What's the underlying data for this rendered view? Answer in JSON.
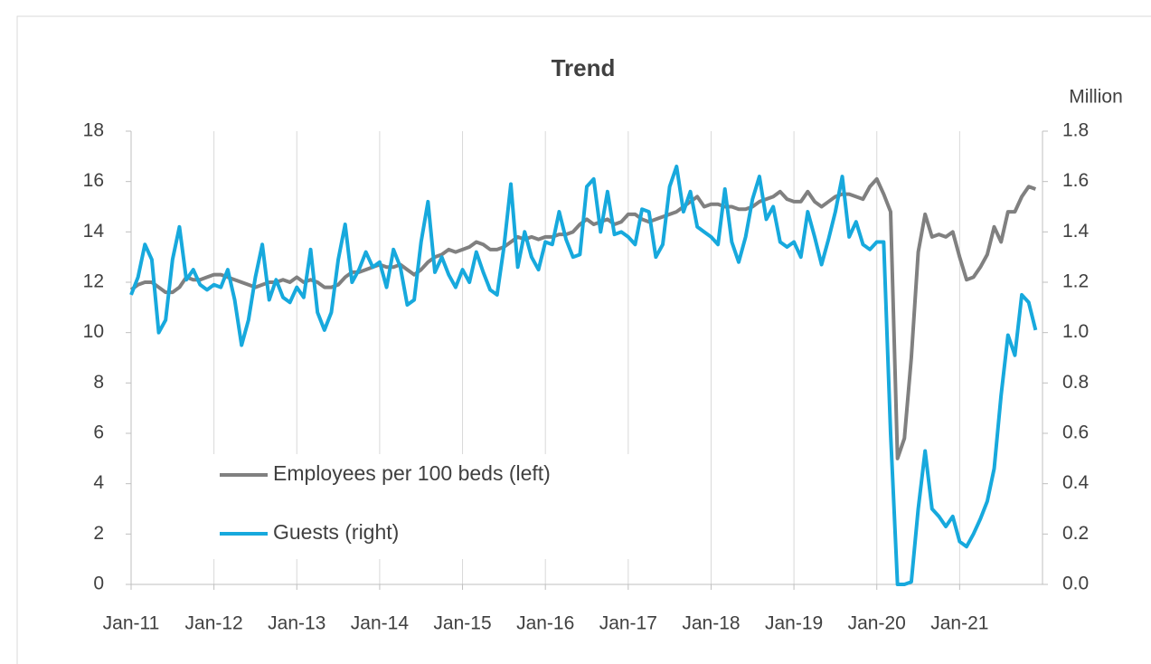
{
  "chart_data": {
    "type": "line",
    "title": "Trend",
    "y2_label": "Million",
    "categories": [
      "Jan-11",
      null,
      null,
      null,
      null,
      null,
      null,
      null,
      null,
      null,
      null,
      null,
      "Jan-12",
      null,
      null,
      null,
      null,
      null,
      null,
      null,
      null,
      null,
      null,
      null,
      "Jan-13",
      null,
      null,
      null,
      null,
      null,
      null,
      null,
      null,
      null,
      null,
      null,
      "Jan-14",
      null,
      null,
      null,
      null,
      null,
      null,
      null,
      null,
      null,
      null,
      null,
      "Jan-15",
      null,
      null,
      null,
      null,
      null,
      null,
      null,
      null,
      null,
      null,
      null,
      "Jan-16",
      null,
      null,
      null,
      null,
      null,
      null,
      null,
      null,
      null,
      null,
      null,
      "Jan-17",
      null,
      null,
      null,
      null,
      null,
      null,
      null,
      null,
      null,
      null,
      null,
      "Jan-18",
      null,
      null,
      null,
      null,
      null,
      null,
      null,
      null,
      null,
      null,
      null,
      "Jan-19",
      null,
      null,
      null,
      null,
      null,
      null,
      null,
      null,
      null,
      null,
      null,
      "Jan-20",
      null,
      null,
      null,
      null,
      null,
      null,
      null,
      null,
      null,
      null,
      null,
      "Jan-21",
      null,
      null,
      null,
      null,
      null,
      null,
      null,
      null,
      null,
      null,
      null
    ],
    "series": [
      {
        "name": "Employees per 100 beds (left)",
        "color": "#808080",
        "axis": "y",
        "values": [
          11.7,
          11.9,
          12.0,
          12.0,
          11.8,
          11.6,
          11.6,
          11.8,
          12.2,
          12.1,
          12.1,
          12.2,
          12.3,
          12.3,
          12.2,
          12.1,
          12.0,
          11.9,
          11.8,
          11.9,
          12.0,
          12.0,
          12.1,
          12.0,
          12.2,
          12.0,
          12.1,
          12.0,
          11.8,
          11.8,
          11.9,
          12.2,
          12.4,
          12.4,
          12.5,
          12.6,
          12.7,
          12.6,
          12.6,
          12.7,
          12.5,
          12.3,
          12.5,
          12.8,
          13.0,
          13.1,
          13.3,
          13.2,
          13.3,
          13.4,
          13.6,
          13.5,
          13.3,
          13.3,
          13.4,
          13.6,
          13.8,
          13.7,
          13.8,
          13.7,
          13.8,
          13.8,
          13.9,
          13.9,
          14.0,
          14.3,
          14.5,
          14.3,
          14.4,
          14.5,
          14.3,
          14.4,
          14.7,
          14.7,
          14.5,
          14.4,
          14.5,
          14.6,
          14.7,
          14.8,
          15.0,
          15.2,
          15.4,
          15.0,
          15.1,
          15.1,
          15.0,
          15.0,
          14.9,
          14.9,
          15.0,
          15.2,
          15.3,
          15.4,
          15.6,
          15.3,
          15.2,
          15.2,
          15.6,
          15.2,
          15.0,
          15.2,
          15.4,
          15.5,
          15.5,
          15.4,
          15.3,
          15.8,
          16.1,
          15.5,
          14.8,
          5.0,
          5.8,
          9.0,
          13.2,
          14.7,
          13.8,
          13.9,
          13.8,
          14.0,
          13.0,
          12.1,
          12.2,
          12.6,
          13.1,
          14.2,
          13.6,
          14.8,
          14.8,
          15.4,
          15.8,
          15.7
        ]
      },
      {
        "name": "Guests (right)",
        "color": "#17a9dd",
        "axis": "y2",
        "values": [
          1.15,
          1.22,
          1.35,
          1.29,
          1.0,
          1.05,
          1.29,
          1.42,
          1.21,
          1.25,
          1.19,
          1.17,
          1.19,
          1.18,
          1.25,
          1.13,
          0.95,
          1.05,
          1.22,
          1.35,
          1.13,
          1.21,
          1.14,
          1.12,
          1.18,
          1.14,
          1.33,
          1.08,
          1.01,
          1.08,
          1.29,
          1.43,
          1.2,
          1.25,
          1.32,
          1.26,
          1.28,
          1.18,
          1.33,
          1.26,
          1.11,
          1.13,
          1.36,
          1.52,
          1.24,
          1.3,
          1.23,
          1.18,
          1.25,
          1.2,
          1.32,
          1.24,
          1.17,
          1.15,
          1.34,
          1.59,
          1.26,
          1.4,
          1.3,
          1.25,
          1.36,
          1.35,
          1.48,
          1.37,
          1.3,
          1.31,
          1.58,
          1.61,
          1.4,
          1.56,
          1.39,
          1.4,
          1.38,
          1.35,
          1.49,
          1.48,
          1.3,
          1.35,
          1.58,
          1.66,
          1.48,
          1.56,
          1.42,
          1.4,
          1.38,
          1.35,
          1.57,
          1.36,
          1.28,
          1.38,
          1.53,
          1.62,
          1.45,
          1.5,
          1.36,
          1.34,
          1.36,
          1.3,
          1.48,
          1.38,
          1.27,
          1.37,
          1.48,
          1.62,
          1.38,
          1.44,
          1.35,
          1.33,
          1.36,
          1.36,
          0.6,
          0.0,
          0.0,
          0.01,
          0.3,
          0.53,
          0.3,
          0.27,
          0.23,
          0.27,
          0.17,
          0.15,
          0.2,
          0.26,
          0.33,
          0.46,
          0.75,
          0.99,
          0.91,
          1.15,
          1.12,
          1.01
        ]
      }
    ],
    "ylim": [
      0,
      18
    ],
    "yticks": [
      0,
      2,
      4,
      6,
      8,
      10,
      12,
      14,
      16,
      18
    ],
    "y2lim": [
      0,
      1.8
    ],
    "y2ticks": [
      {
        "value": 0,
        "label": "0.0"
      },
      {
        "value": 0.2,
        "label": "0.2"
      },
      {
        "value": 0.4,
        "label": "0.4"
      },
      {
        "value": 0.6,
        "label": "0.6"
      },
      {
        "value": 0.8,
        "label": "0.8"
      },
      {
        "value": 1,
        "label": "1.0"
      },
      {
        "value": 1.2,
        "label": "1.2"
      },
      {
        "value": 1.4,
        "label": "1.4"
      },
      {
        "value": 1.6,
        "label": "1.6"
      },
      {
        "value": 1.8,
        "label": "1.8"
      }
    ],
    "grid": "x",
    "legend": "lower left"
  }
}
